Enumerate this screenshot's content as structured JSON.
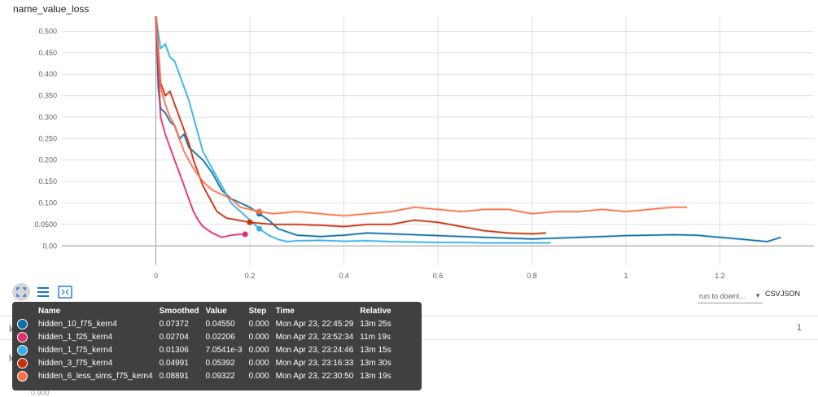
{
  "title": "name_value_loss",
  "chart_data": {
    "type": "line",
    "title": "name_value_loss",
    "xlabel": "",
    "ylabel": "",
    "xlim": [
      -0.2,
      1.4
    ],
    "ylim": [
      -0.045,
      0.535
    ],
    "x_ticks": [
      "0",
      "0.2",
      "0.4",
      "0.6",
      "0.8",
      "1",
      "1.2"
    ],
    "y_ticks": [
      "0.00",
      "0.0500",
      "0.100",
      "0.150",
      "0.200",
      "0.250",
      "0.300",
      "0.350",
      "0.400",
      "0.450",
      "0.500"
    ],
    "x_tick_values": [
      0,
      0.2,
      0.4,
      0.6,
      0.8,
      1.0,
      1.2
    ],
    "y_tick_values": [
      0,
      0.05,
      0.1,
      0.15,
      0.2,
      0.25,
      0.3,
      0.35,
      0.4,
      0.45,
      0.5
    ],
    "grid": true,
    "series": [
      {
        "name": "hidden_10_f75_kern4",
        "color": "#0b6ea8",
        "x": [
          0,
          0.005,
          0.01,
          0.02,
          0.03,
          0.04,
          0.05,
          0.06,
          0.07,
          0.08,
          0.09,
          0.1,
          0.12,
          0.14,
          0.16,
          0.18,
          0.2,
          0.22,
          0.24,
          0.26,
          0.3,
          0.35,
          0.4,
          0.45,
          0.5,
          0.55,
          0.6,
          0.65,
          0.7,
          0.75,
          0.8,
          0.85,
          0.9,
          0.95,
          1.0,
          1.05,
          1.1,
          1.15,
          1.2,
          1.25,
          1.3,
          1.33
        ],
        "y": [
          0.54,
          0.37,
          0.32,
          0.31,
          0.29,
          0.28,
          0.25,
          0.26,
          0.23,
          0.22,
          0.21,
          0.2,
          0.17,
          0.13,
          0.11,
          0.1,
          0.09,
          0.075,
          0.06,
          0.04,
          0.025,
          0.022,
          0.025,
          0.03,
          0.028,
          0.026,
          0.024,
          0.022,
          0.02,
          0.018,
          0.016,
          0.018,
          0.02,
          0.022,
          0.024,
          0.025,
          0.026,
          0.025,
          0.02,
          0.015,
          0.01,
          0.02
        ]
      },
      {
        "name": "hidden_1_f25_kern4",
        "color": "#e0306f",
        "x": [
          0,
          0.01,
          0.02,
          0.03,
          0.04,
          0.05,
          0.06,
          0.07,
          0.08,
          0.09,
          0.1,
          0.12,
          0.14,
          0.16,
          0.18,
          0.19
        ],
        "y": [
          0.54,
          0.3,
          0.26,
          0.23,
          0.2,
          0.17,
          0.14,
          0.11,
          0.08,
          0.06,
          0.045,
          0.03,
          0.02,
          0.025,
          0.027,
          0.027
        ]
      },
      {
        "name": "hidden_1_f75_kern4",
        "color": "#35b0e6",
        "x": [
          0,
          0.01,
          0.02,
          0.03,
          0.04,
          0.05,
          0.06,
          0.07,
          0.08,
          0.09,
          0.1,
          0.12,
          0.14,
          0.16,
          0.18,
          0.2,
          0.22,
          0.24,
          0.26,
          0.28,
          0.3,
          0.35,
          0.4,
          0.45,
          0.5,
          0.55,
          0.6,
          0.65,
          0.7,
          0.75,
          0.8,
          0.84
        ],
        "y": [
          0.54,
          0.46,
          0.47,
          0.44,
          0.43,
          0.4,
          0.37,
          0.34,
          0.3,
          0.26,
          0.22,
          0.18,
          0.14,
          0.1,
          0.08,
          0.06,
          0.04,
          0.025,
          0.015,
          0.01,
          0.012,
          0.013,
          0.011,
          0.012,
          0.01,
          0.009,
          0.008,
          0.008,
          0.007,
          0.007,
          0.007,
          0.007
        ]
      },
      {
        "name": "hidden_3_f75_kern4",
        "color": "#c9300e",
        "x": [
          0,
          0.01,
          0.02,
          0.03,
          0.04,
          0.05,
          0.06,
          0.07,
          0.08,
          0.09,
          0.1,
          0.11,
          0.12,
          0.13,
          0.15,
          0.2,
          0.25,
          0.3,
          0.35,
          0.4,
          0.45,
          0.5,
          0.55,
          0.6,
          0.65,
          0.7,
          0.75,
          0.8,
          0.83
        ],
        "y": [
          0.54,
          0.38,
          0.35,
          0.36,
          0.33,
          0.3,
          0.27,
          0.24,
          0.2,
          0.17,
          0.14,
          0.12,
          0.1,
          0.08,
          0.065,
          0.055,
          0.05,
          0.05,
          0.048,
          0.045,
          0.05,
          0.05,
          0.06,
          0.055,
          0.045,
          0.035,
          0.03,
          0.028,
          0.03
        ]
      },
      {
        "name": "hidden_6_less_sims_f75_kern4",
        "color": "#ff7043",
        "x": [
          0,
          0.01,
          0.02,
          0.03,
          0.04,
          0.05,
          0.06,
          0.07,
          0.08,
          0.1,
          0.12,
          0.14,
          0.16,
          0.18,
          0.2,
          0.22,
          0.25,
          0.3,
          0.35,
          0.4,
          0.45,
          0.5,
          0.55,
          0.6,
          0.65,
          0.7,
          0.75,
          0.8,
          0.85,
          0.9,
          0.95,
          1.0,
          1.05,
          1.1,
          1.13
        ],
        "y": [
          0.54,
          0.37,
          0.33,
          0.3,
          0.28,
          0.25,
          0.22,
          0.2,
          0.18,
          0.15,
          0.13,
          0.12,
          0.11,
          0.09,
          0.085,
          0.08,
          0.075,
          0.08,
          0.075,
          0.07,
          0.075,
          0.08,
          0.09,
          0.085,
          0.08,
          0.085,
          0.085,
          0.075,
          0.08,
          0.08,
          0.085,
          0.08,
          0.085,
          0.09,
          0.09
        ]
      }
    ]
  },
  "controls": {
    "expand_icon": "expand-icon",
    "lines_icon": "lines-icon",
    "fit_icon": "fit-domain-icon",
    "run_select": "run to downl...",
    "csv": "CSV",
    "json": "JSON"
  },
  "tooltip": {
    "headers": {
      "name": "Name",
      "smoothed": "Smoothed",
      "value": "Value",
      "step": "Step",
      "time": "Time",
      "relative": "Relative"
    },
    "rows": [
      {
        "name": "hidden_10_f75_kern4",
        "smoothed": "0.07372",
        "value": "0.04550",
        "step": "0.000",
        "time": "Mon Apr 23, 22:45:29",
        "relative": "13m 25s",
        "color": "#0b6ea8"
      },
      {
        "name": "hidden_1_f25_kern4",
        "smoothed": "0.02704",
        "value": "0.02206",
        "step": "0.000",
        "time": "Mon Apr 23, 23:52:34",
        "relative": "11m 19s",
        "color": "#e0306f"
      },
      {
        "name": "hidden_1_f75_kern4",
        "smoothed": "0.01306",
        "value": "7.0541e-3",
        "step": "0.000",
        "time": "Mon Apr 23, 23:24:46",
        "relative": "13m 15s",
        "color": "#35b0e6"
      },
      {
        "name": "hidden_3_f75_kern4",
        "smoothed": "0.04991",
        "value": "0.05392",
        "step": "0.000",
        "time": "Mon Apr 23, 23:16:33",
        "relative": "13m 30s",
        "color": "#c9300e"
      },
      {
        "name": "hidden_6_less_sims_f75_kern4",
        "smoothed": "0.08891",
        "value": "0.09322",
        "step": "0.000",
        "time": "Mon Apr 23, 22:30:50",
        "relative": "13m 19s",
        "color": "#ff7043"
      }
    ]
  },
  "next_card": {
    "title": "loss",
    "count": "1"
  },
  "next_chart": {
    "title": "loss",
    "tick": "0.900"
  }
}
